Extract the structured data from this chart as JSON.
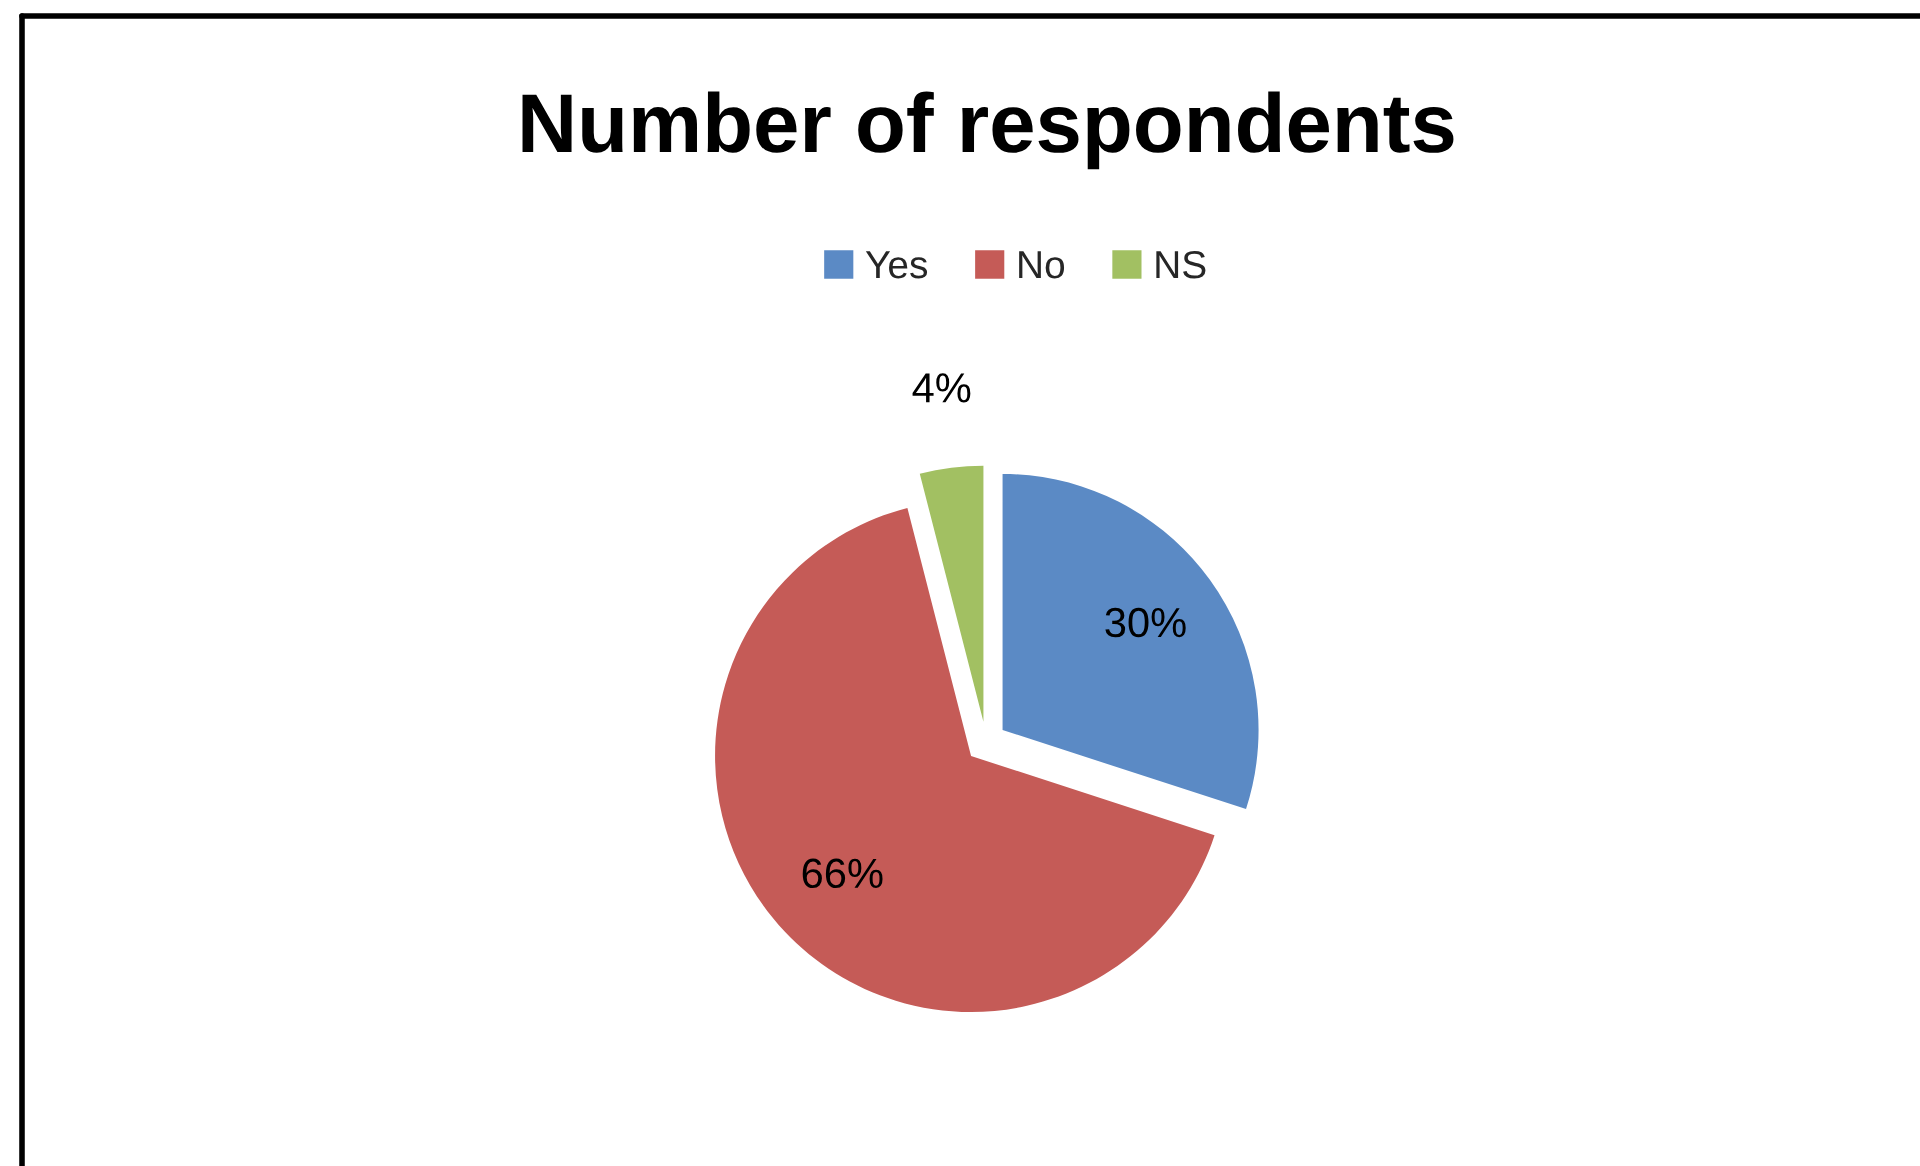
{
  "chart_data": {
    "type": "pie",
    "title": "Number of respondents",
    "categories": [
      "Yes",
      "No",
      "NS"
    ],
    "values": [
      30,
      66,
      4
    ],
    "colors": [
      "#5b8ac5",
      "#c55b57",
      "#a2c062"
    ],
    "value_labels": [
      "30%",
      "66%",
      "4%"
    ],
    "legend": "top"
  }
}
